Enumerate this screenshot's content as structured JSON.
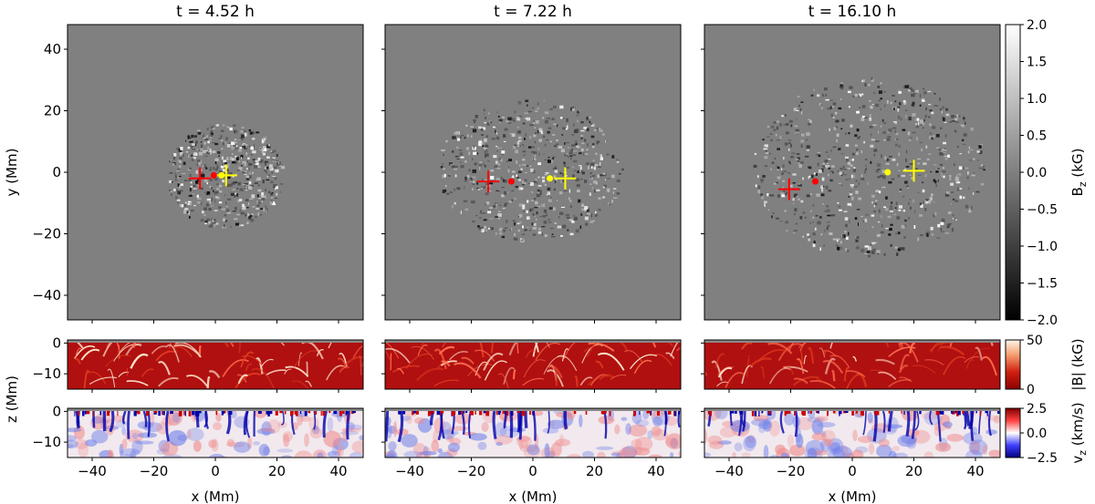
{
  "chart_data": {
    "type": "heatmap",
    "panels": [
      {
        "title": "t = 4.52 h",
        "markers": {
          "red_cross": [
            -5,
            -2
          ],
          "red_dot": [
            -0.5,
            -1
          ],
          "yellow_dot": [
            2,
            -1
          ],
          "yellow_cross": [
            3.5,
            -1
          ]
        },
        "patch": {
          "cx": 3,
          "cy": -1,
          "rx": 19,
          "ry": 17
        }
      },
      {
        "title": "t = 7.22 h",
        "markers": {
          "red_cross": [
            -14.5,
            -3
          ],
          "red_dot": [
            -7,
            -3
          ],
          "yellow_dot": [
            5.5,
            -2
          ],
          "yellow_cross": [
            10.5,
            -2
          ]
        },
        "patch": {
          "cx": -1,
          "cy": 1,
          "rx": 30,
          "ry": 23
        }
      },
      {
        "title": "t = 16.10 h",
        "markers": {
          "red_cross": [
            -20.5,
            -5.5
          ],
          "red_dot": [
            -12,
            -3
          ],
          "yellow_dot": [
            11.5,
            0
          ],
          "yellow_cross": [
            20,
            0.5
          ]
        },
        "patch": {
          "cx": 5,
          "cy": 2,
          "rx": 38,
          "ry": 29
        }
      }
    ],
    "x_axis": {
      "label": "x (Mm)",
      "range": [
        -48,
        48
      ],
      "ticks": [
        -40,
        -20,
        0,
        20,
        40
      ]
    },
    "y_axis": {
      "label": "y (Mm)",
      "range": [
        -48,
        48
      ],
      "ticks": [
        -40,
        -20,
        0,
        20,
        40
      ]
    },
    "z_axis": {
      "label": "z (Mm)",
      "range": [
        -15,
        1
      ],
      "ticks": [
        0,
        -10
      ]
    },
    "colorbars": [
      {
        "label_main": "B",
        "label_sub": "z",
        "label_unit": " (kG)",
        "range": [
          -2.0,
          2.0
        ],
        "ticks": [
          "2.0",
          "1.5",
          "1.0",
          "0.5",
          "0.0",
          "−0.5",
          "−1.0",
          "−1.5",
          "−2.0"
        ],
        "colormap": "gray"
      },
      {
        "label_main": "|B| (kG)",
        "label_sub": "",
        "label_unit": "",
        "range": [
          0,
          50
        ],
        "ticks": [
          "50",
          "0"
        ],
        "colormap": "white-red"
      },
      {
        "label_main": "v",
        "label_sub": "z",
        "label_unit": " (km/s)",
        "range": [
          -2.5,
          2.5
        ],
        "ticks": [
          "2.5",
          "0.0",
          "−2.5"
        ],
        "colormap": "blue-white-red"
      }
    ],
    "colors": {
      "background_gray": "#808080",
      "red_marker": "#ff0000",
      "yellow_marker": "#ffff00",
      "field_dark_red": "#b01010",
      "vz_red": "#cc0000",
      "vz_blue": "#0000aa"
    }
  }
}
